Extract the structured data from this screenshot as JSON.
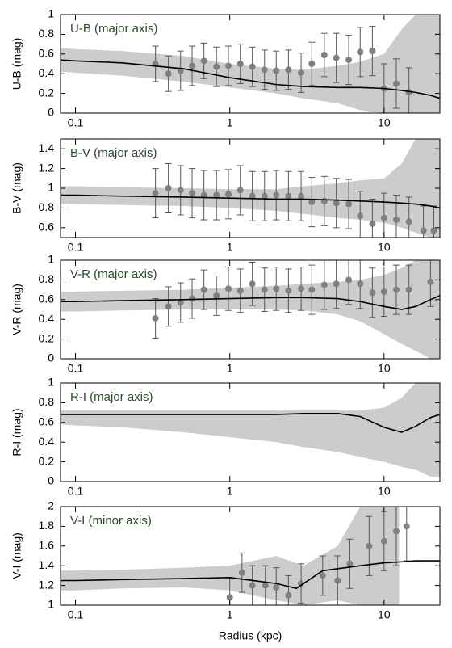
{
  "chart_data": [
    {
      "type": "line",
      "title": "U-B (major axis)",
      "ylabel": "U-B  (mag)",
      "log_x": true,
      "xlim": [
        0.08,
        23
      ],
      "ylim": [
        0,
        1
      ],
      "xticks": [
        0.1,
        1,
        10
      ],
      "yticks": [
        0,
        0.2,
        0.4,
        0.6,
        0.8,
        1
      ],
      "band": {
        "color": "#cccccc",
        "x": [
          0.08,
          0.1,
          0.2,
          0.5,
          1,
          2,
          3,
          5,
          7,
          10,
          13,
          16,
          20,
          23
        ],
        "lower": [
          0.42,
          0.41,
          0.38,
          0.32,
          0.26,
          0.2,
          0.15,
          0.1,
          0.03,
          0,
          0,
          0,
          0,
          0
        ],
        "upper": [
          0.66,
          0.65,
          0.63,
          0.58,
          0.5,
          0.45,
          0.44,
          0.48,
          0.52,
          0.6,
          0.85,
          1,
          1,
          1
        ]
      },
      "curve": {
        "color": "#000000",
        "x": [
          0.08,
          0.1,
          0.2,
          0.5,
          1,
          2,
          3,
          5,
          7,
          10,
          13,
          16,
          20,
          23
        ],
        "values": [
          0.54,
          0.53,
          0.51,
          0.45,
          0.36,
          0.29,
          0.27,
          0.26,
          0.26,
          0.25,
          0.23,
          0.21,
          0.18,
          0.15
        ]
      },
      "points": {
        "color": "#808080",
        "x": [
          0.33,
          0.4,
          0.48,
          0.57,
          0.68,
          0.82,
          0.98,
          1.17,
          1.4,
          1.68,
          2.0,
          2.4,
          2.9,
          3.4,
          4.1,
          4.9,
          5.9,
          7.0,
          8.4,
          10,
          12,
          14.5
        ],
        "values": [
          0.5,
          0.4,
          0.43,
          0.48,
          0.53,
          0.47,
          0.48,
          0.5,
          0.47,
          0.44,
          0.43,
          0.44,
          0.41,
          0.5,
          0.59,
          0.56,
          0.54,
          0.62,
          0.63,
          0.25,
          0.3,
          0.21
        ],
        "errors": [
          0.18,
          0.18,
          0.2,
          0.2,
          0.18,
          0.2,
          0.2,
          0.2,
          0.2,
          0.2,
          0.2,
          0.2,
          0.2,
          0.22,
          0.22,
          0.25,
          0.25,
          0.25,
          0.25,
          0.25,
          0.25,
          0.25
        ]
      }
    },
    {
      "type": "line",
      "title": "B-V (major axis)",
      "ylabel": "B-V  (mag)",
      "log_x": true,
      "xlim": [
        0.08,
        23
      ],
      "ylim": [
        0.5,
        1.5
      ],
      "xticks": [
        0.1,
        1,
        10
      ],
      "yticks": [
        0.6,
        0.8,
        1,
        1.2,
        1.4
      ],
      "band": {
        "color": "#cccccc",
        "x": [
          0.08,
          0.1,
          0.2,
          0.5,
          1,
          2,
          3,
          5,
          7,
          10,
          13,
          16,
          20,
          23
        ],
        "lower": [
          0.84,
          0.84,
          0.83,
          0.82,
          0.8,
          0.77,
          0.74,
          0.7,
          0.68,
          0.65,
          0.6,
          0.55,
          0.5,
          0.5
        ],
        "upper": [
          1.02,
          1.02,
          1.01,
          1.0,
          0.99,
          0.99,
          1.02,
          1.05,
          1.08,
          1.1,
          1.25,
          1.5,
          1.5,
          1.5
        ]
      },
      "curve": {
        "color": "#000000",
        "x": [
          0.08,
          0.1,
          0.2,
          0.5,
          1,
          2,
          3,
          5,
          7,
          10,
          13,
          16,
          20,
          23
        ],
        "values": [
          0.93,
          0.93,
          0.92,
          0.91,
          0.9,
          0.89,
          0.89,
          0.88,
          0.87,
          0.86,
          0.85,
          0.84,
          0.82,
          0.8
        ]
      },
      "points": {
        "color": "#808080",
        "x": [
          0.33,
          0.4,
          0.48,
          0.57,
          0.68,
          0.82,
          0.98,
          1.17,
          1.4,
          1.68,
          2.0,
          2.4,
          2.9,
          3.4,
          4.1,
          4.9,
          5.9,
          7.0,
          8.4,
          10,
          12,
          14.5,
          18,
          21
        ],
        "values": [
          0.95,
          1.0,
          0.98,
          0.95,
          0.93,
          0.93,
          0.94,
          0.98,
          0.92,
          0.92,
          0.93,
          0.92,
          0.92,
          0.86,
          0.87,
          0.85,
          0.84,
          0.72,
          0.64,
          0.7,
          0.68,
          0.66,
          0.57,
          0.57
        ],
        "errors": [
          0.25,
          0.25,
          0.25,
          0.25,
          0.25,
          0.25,
          0.25,
          0.25,
          0.25,
          0.25,
          0.25,
          0.25,
          0.25,
          0.25,
          0.25,
          0.25,
          0.25,
          0.25,
          0.25,
          0.25,
          0.25,
          0.25,
          0.25,
          0.25
        ]
      }
    },
    {
      "type": "line",
      "title": "V-R (major axis)",
      "ylabel": "V-R  (mag)",
      "log_x": true,
      "xlim": [
        0.08,
        23
      ],
      "ylim": [
        0,
        1
      ],
      "xticks": [
        0.1,
        1,
        10
      ],
      "yticks": [
        0,
        0.2,
        0.4,
        0.6,
        0.8,
        1
      ],
      "band": {
        "color": "#cccccc",
        "x": [
          0.08,
          0.1,
          0.2,
          0.5,
          1,
          2,
          3,
          5,
          7,
          10,
          13,
          16,
          20,
          23
        ],
        "lower": [
          0.48,
          0.48,
          0.49,
          0.5,
          0.5,
          0.5,
          0.49,
          0.45,
          0.38,
          0.25,
          0.15,
          0.08,
          0,
          0
        ],
        "upper": [
          0.68,
          0.68,
          0.69,
          0.7,
          0.72,
          0.74,
          0.76,
          0.78,
          0.8,
          0.85,
          0.92,
          1,
          1,
          1
        ]
      },
      "curve": {
        "color": "#000000",
        "x": [
          0.08,
          0.1,
          0.2,
          0.5,
          1,
          2,
          3,
          5,
          7,
          10,
          13,
          16,
          20,
          23
        ],
        "values": [
          0.58,
          0.58,
          0.59,
          0.6,
          0.61,
          0.62,
          0.62,
          0.61,
          0.58,
          0.53,
          0.5,
          0.53,
          0.6,
          0.64
        ]
      },
      "points": {
        "color": "#808080",
        "x": [
          0.33,
          0.4,
          0.48,
          0.57,
          0.68,
          0.82,
          0.98,
          1.17,
          1.4,
          1.68,
          2.0,
          2.4,
          2.9,
          3.4,
          4.1,
          4.9,
          5.9,
          7.0,
          8.4,
          10,
          12,
          14.5,
          20
        ],
        "values": [
          0.41,
          0.53,
          0.57,
          0.61,
          0.7,
          0.64,
          0.71,
          0.69,
          0.76,
          0.7,
          0.71,
          0.69,
          0.71,
          0.7,
          0.75,
          0.76,
          0.8,
          0.76,
          0.67,
          0.68,
          0.7,
          0.7,
          0.78
        ],
        "errors": [
          0.2,
          0.2,
          0.2,
          0.2,
          0.2,
          0.2,
          0.22,
          0.22,
          0.22,
          0.22,
          0.22,
          0.22,
          0.22,
          0.25,
          0.25,
          0.25,
          0.25,
          0.25,
          0.25,
          0.25,
          0.25,
          0.25,
          0.25
        ]
      }
    },
    {
      "type": "line",
      "title": "R-I (major axis)",
      "ylabel": "R-I  (mag)",
      "log_x": true,
      "xlim": [
        0.08,
        23
      ],
      "ylim": [
        0,
        1
      ],
      "xticks": [
        0.1,
        1,
        10
      ],
      "yticks": [
        0,
        0.2,
        0.4,
        0.6,
        0.8,
        1
      ],
      "band": {
        "color": "#cccccc",
        "x": [
          0.08,
          0.1,
          0.2,
          0.5,
          1,
          2,
          3,
          5,
          7,
          10,
          13,
          16,
          20,
          23
        ],
        "lower": [
          0.58,
          0.57,
          0.55,
          0.5,
          0.45,
          0.4,
          0.35,
          0.3,
          0.25,
          0.2,
          0.15,
          0.12,
          0.05,
          0.05
        ],
        "upper": [
          0.72,
          0.72,
          0.72,
          0.72,
          0.72,
          0.72,
          0.72,
          0.72,
          0.72,
          0.75,
          0.85,
          1,
          1,
          1
        ]
      },
      "curve": {
        "color": "#000000",
        "x": [
          0.08,
          0.1,
          0.2,
          0.5,
          1,
          2,
          3,
          5,
          7,
          10,
          13,
          16,
          20,
          23
        ],
        "values": [
          0.68,
          0.68,
          0.68,
          0.68,
          0.68,
          0.68,
          0.69,
          0.69,
          0.66,
          0.55,
          0.5,
          0.56,
          0.65,
          0.68
        ]
      }
    },
    {
      "type": "line",
      "title": "V-I (minor axis)",
      "ylabel": "V-I  (mag)",
      "xlabel": "Radius (kpc)",
      "log_x": true,
      "xlim": [
        0.08,
        23
      ],
      "ylim": [
        1,
        2
      ],
      "xticks": [
        0.1,
        1,
        10
      ],
      "yticks": [
        1,
        1.2,
        1.4,
        1.6,
        1.8,
        2
      ],
      "band": {
        "color": "#cccccc",
        "x": [
          0.08,
          0.1,
          0.2,
          0.5,
          1,
          2,
          3,
          5,
          7,
          10,
          12.5
        ],
        "lower": [
          1.15,
          1.15,
          1.17,
          1.18,
          1.15,
          1.05,
          1.0,
          1.05,
          1.0,
          1.0,
          1.0
        ],
        "upper": [
          1.35,
          1.35,
          1.36,
          1.38,
          1.4,
          1.5,
          1.4,
          1.6,
          2,
          2,
          2
        ]
      },
      "curve": {
        "color": "#000000",
        "x": [
          0.08,
          0.1,
          0.2,
          0.5,
          1,
          2,
          2.7,
          4,
          7,
          10,
          13,
          16,
          20,
          23
        ],
        "values": [
          1.25,
          1.25,
          1.26,
          1.27,
          1.28,
          1.22,
          1.17,
          1.35,
          1.4,
          1.43,
          1.44,
          1.45,
          1.45,
          1.45
        ]
      },
      "points": {
        "color": "#808080",
        "x": [
          1.0,
          1.2,
          1.4,
          1.7,
          2,
          2.4,
          2.9,
          4,
          5,
          6,
          8,
          10,
          12,
          14
        ],
        "values": [
          1.08,
          1.33,
          1.2,
          1.2,
          1.18,
          1.1,
          1.22,
          1.3,
          1.25,
          1.42,
          1.6,
          1.65,
          1.75,
          1.8
        ],
        "errors": [
          0.2,
          0.2,
          0.2,
          0.2,
          0.2,
          0.2,
          0.2,
          0.2,
          0.25,
          0.25,
          0.3,
          0.3,
          0.35,
          0.35
        ]
      }
    }
  ]
}
